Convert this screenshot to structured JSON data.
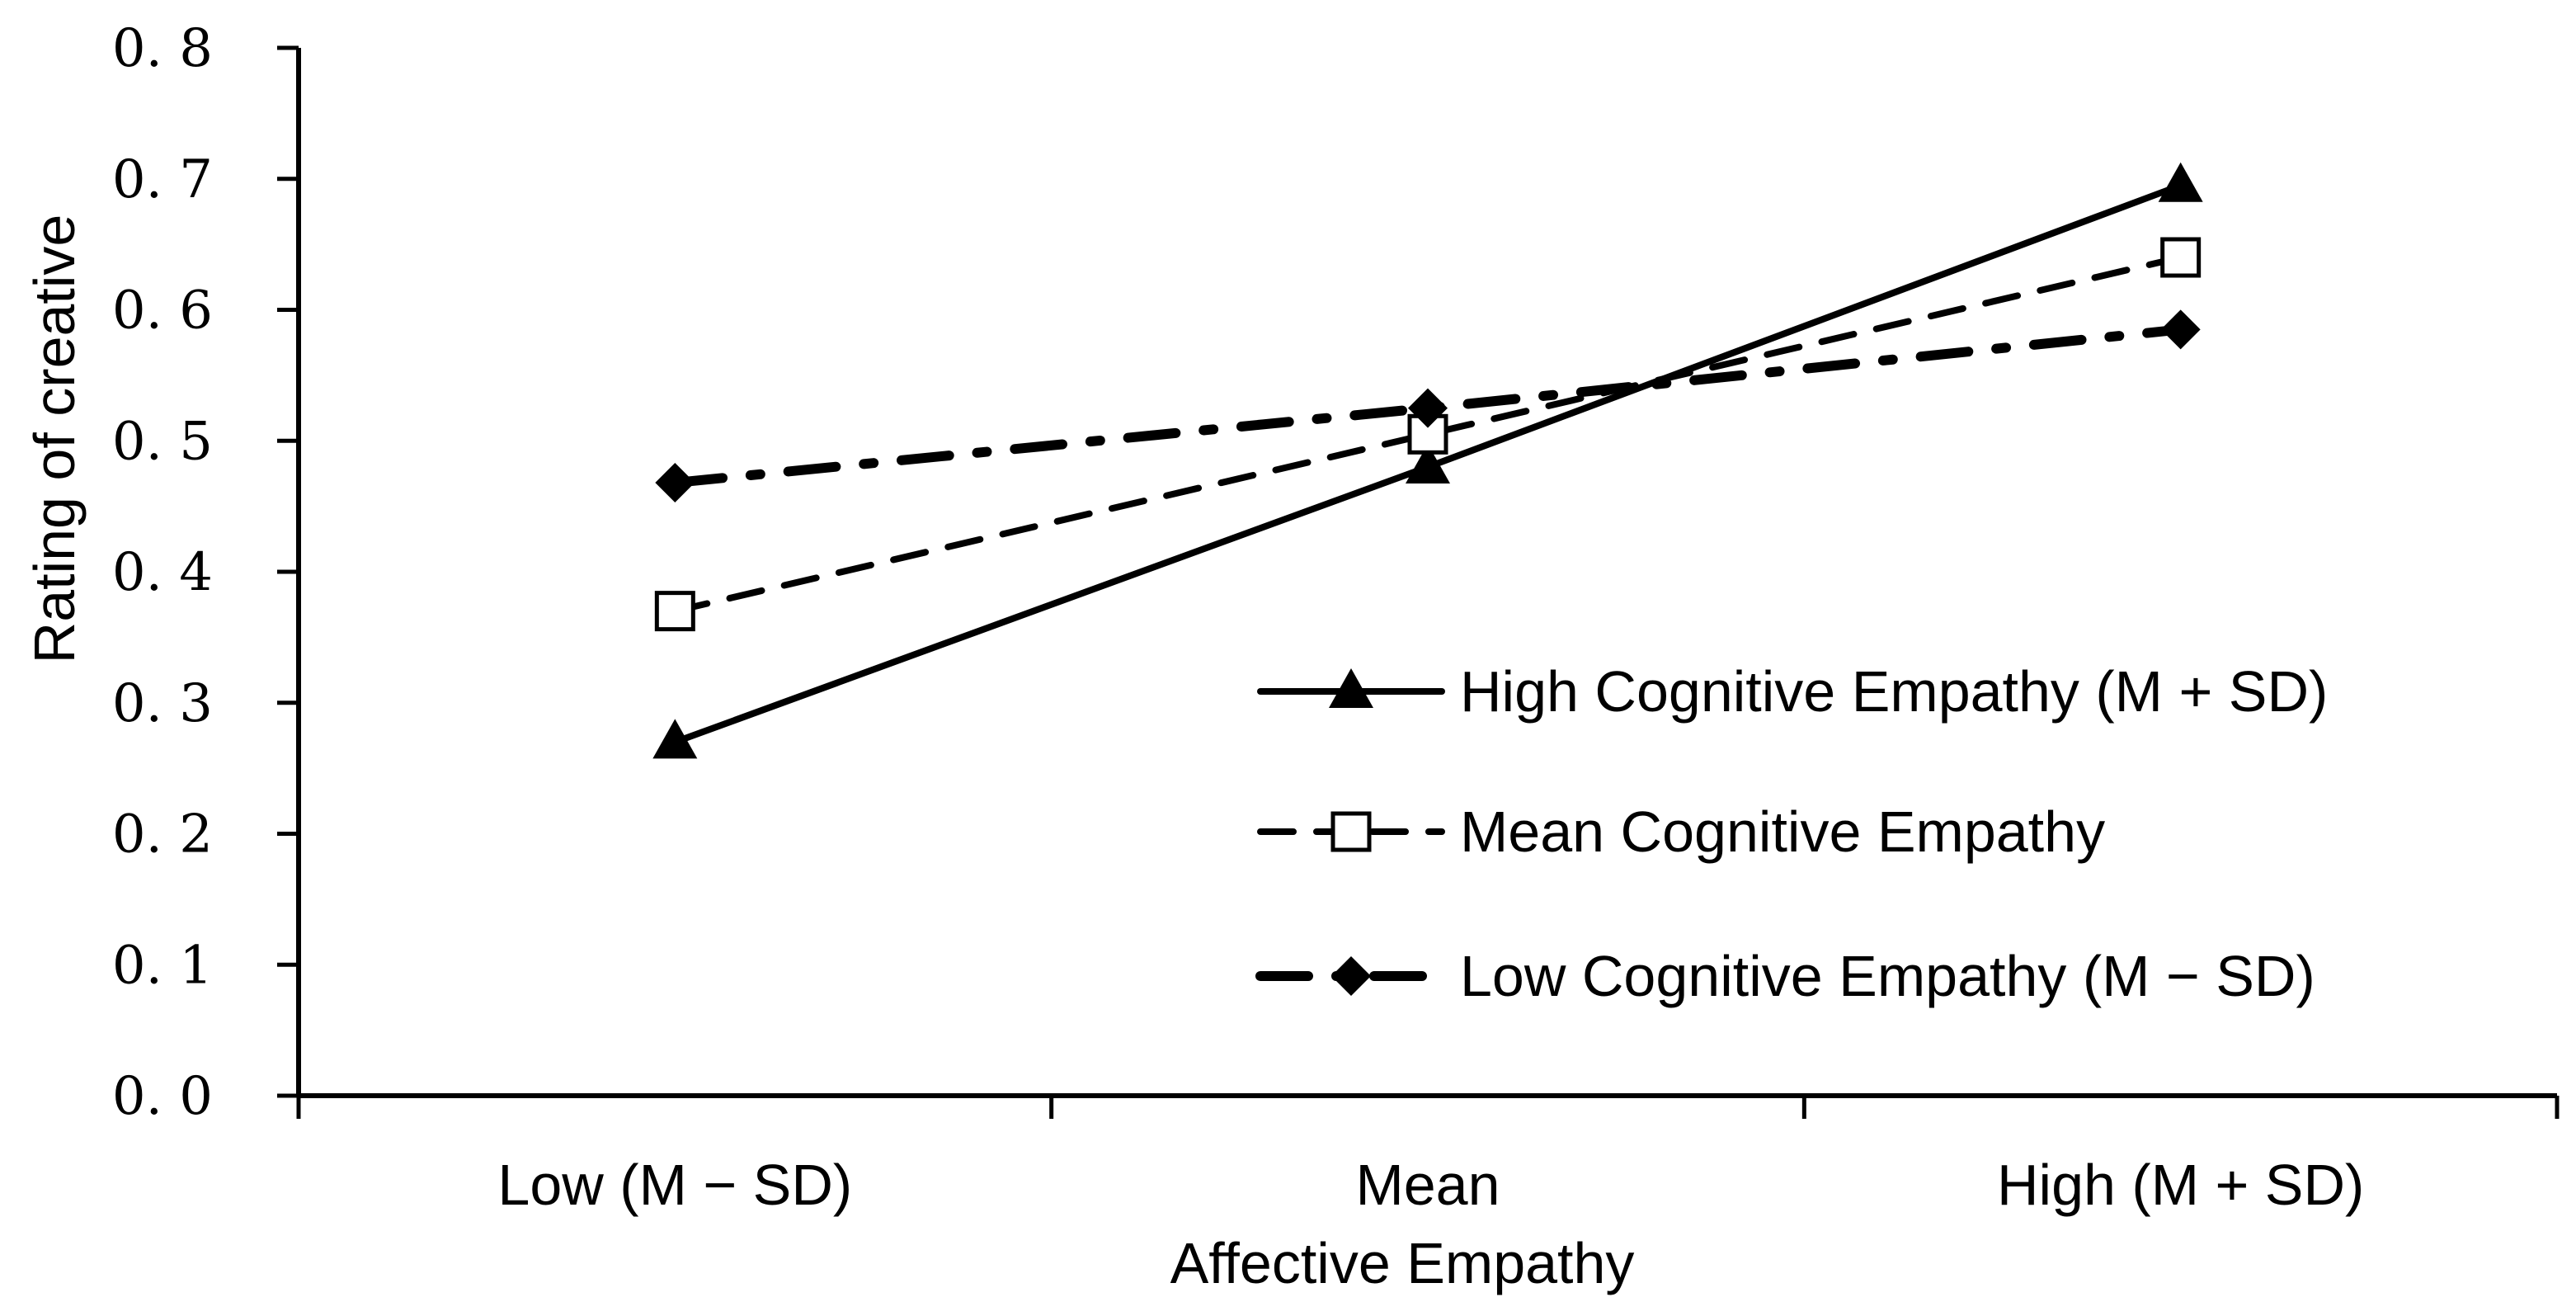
{
  "chart_data": {
    "type": "line",
    "title": "",
    "xlabel": "Affective Empathy",
    "ylabel": "Rating of creative",
    "categories": [
      "Low (M − SD)",
      "Mean",
      "High (M + SD)"
    ],
    "ylim": [
      0.0,
      0.8
    ],
    "yticks": [
      0.0,
      0.1,
      0.2,
      0.3,
      0.4,
      0.5,
      0.6,
      0.7,
      0.8
    ],
    "ytick_labels": [
      "0. 0",
      "0. 1",
      "0. 2",
      "0. 3",
      "0. 4",
      "0. 5",
      "0. 6",
      "0. 7",
      "0. 8"
    ],
    "grid": false,
    "legend_position": "right-center",
    "series": [
      {
        "name": "High Cognitive Empathy (M + SD)",
        "values": [
          0.27,
          0.48,
          0.695
        ],
        "marker": "triangle",
        "line_style": "solid",
        "color": "#000000"
      },
      {
        "name": "Mean Cognitive Empathy",
        "values": [
          0.37,
          0.505,
          0.64
        ],
        "marker": "square-open",
        "line_style": "dashed",
        "color": "#000000"
      },
      {
        "name": "Low Cognitive Empathy (M − SD)",
        "values": [
          0.468,
          0.525,
          0.585
        ],
        "marker": "diamond",
        "line_style": "dash-dot",
        "color": "#000000"
      }
    ]
  }
}
